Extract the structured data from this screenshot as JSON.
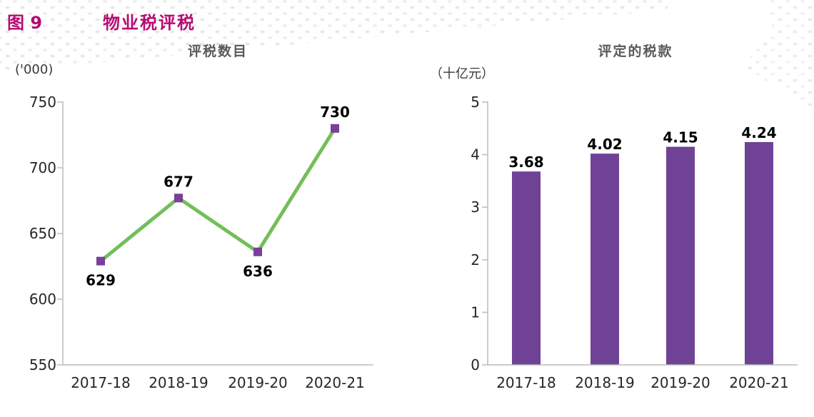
{
  "figure": {
    "label": "图 9",
    "title": "物业税评税"
  },
  "left_chart": {
    "title": "评税数目",
    "unit": "('000)"
  },
  "right_chart": {
    "title": "评定的税款",
    "unit": "（十亿元）"
  },
  "chart_data": [
    {
      "type": "line",
      "title": "评税数目",
      "unit_label": "('000)",
      "categories": [
        "2017-18",
        "2018-19",
        "2019-20",
        "2020-21"
      ],
      "values": [
        629,
        677,
        636,
        730
      ],
      "labels": [
        "629",
        "677",
        "636",
        "730"
      ],
      "label_positions": [
        "below",
        "above",
        "below",
        "above"
      ],
      "ylim": [
        550,
        750
      ],
      "yticks": [
        750,
        700,
        650,
        600,
        550
      ],
      "line_color": "#71bf58",
      "marker_color": "#7a3f9a",
      "marker": "square",
      "grid": false,
      "legend": "none"
    },
    {
      "type": "bar",
      "title": "评定的税款",
      "unit_label": "（十亿元）",
      "categories": [
        "2017-18",
        "2018-19",
        "2019-20",
        "2020-21"
      ],
      "values": [
        3.68,
        4.02,
        4.15,
        4.24
      ],
      "labels": [
        "3.68",
        "4.02",
        "4.15",
        "4.24"
      ],
      "ylim": [
        0,
        5
      ],
      "yticks": [
        5,
        4,
        3,
        2,
        1,
        0
      ],
      "bar_color": "#6f4296",
      "grid": false,
      "legend": "none"
    }
  ],
  "colors": {
    "figure_title": "#b50c72",
    "chart_title": "#595959",
    "axis_line": "#bcbcbc",
    "tick_text": "#262626",
    "data_label": "#000000",
    "line_green": "#71bf58",
    "marker_purple": "#7a3f9a",
    "bar_purple": "#6f4296",
    "dots_gray": "#e8e8e8"
  }
}
